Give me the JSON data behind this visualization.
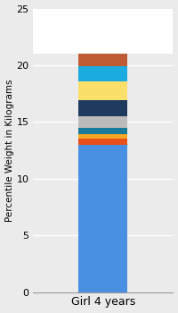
{
  "category": "Girl 4 years",
  "segments": [
    {
      "value": 13.0,
      "color": "#4A90E2"
    },
    {
      "value": 0.5,
      "color": "#E8501A"
    },
    {
      "value": 0.4,
      "color": "#F5A623"
    },
    {
      "value": 0.6,
      "color": "#1A7A9A"
    },
    {
      "value": 1.0,
      "color": "#BBBBBB"
    },
    {
      "value": 1.4,
      "color": "#1E3A5F"
    },
    {
      "value": 1.7,
      "color": "#FAE06A"
    },
    {
      "value": 1.3,
      "color": "#1AACE0"
    },
    {
      "value": 1.1,
      "color": "#C05C35"
    }
  ],
  "ylabel": "Percentile Weight in Kilograms",
  "ylim": [
    0,
    25
  ],
  "yticks": [
    0,
    5,
    10,
    15,
    20,
    25
  ],
  "background_color": "#EBEBEB",
  "plot_bg_color": "#EBEBEB",
  "ylabel_fontsize": 7.5,
  "tick_fontsize": 8,
  "xlabel_fontsize": 9,
  "bar_width": 0.35
}
